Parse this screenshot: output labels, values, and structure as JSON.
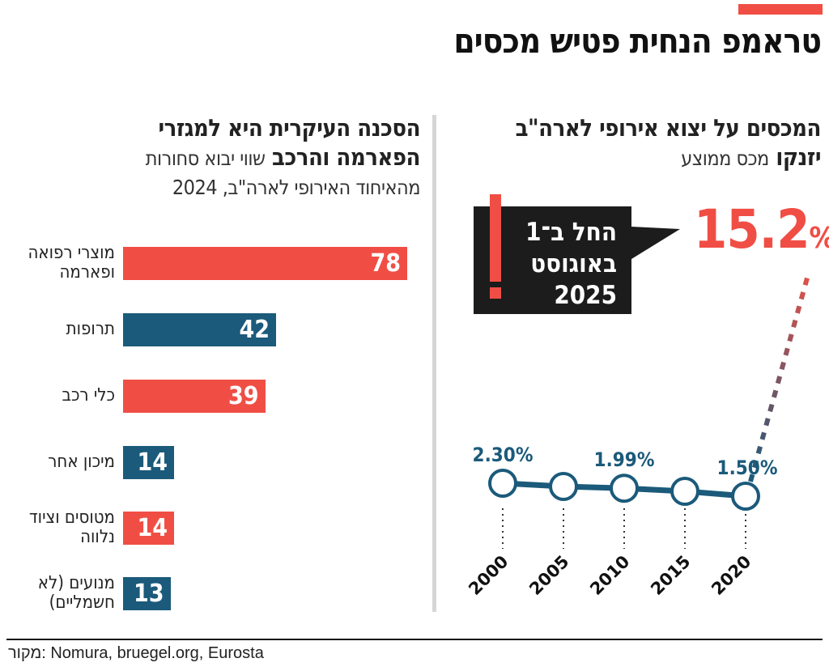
{
  "header": {
    "title": "טראמפ הנחית פטיש מכסים",
    "accent": "#f04e45"
  },
  "left": {
    "title_line1": "הסכנה העיקרית היא למגזרי",
    "title_line2_bold": "הפארמה והרכב",
    "title_line2_rest": "שווי יבוא סחורות",
    "title_line3": "מהאיחוד האירופי לארה\"ב, 2024"
  },
  "right": {
    "title_line1": "המכסים על יצוא אירופי לארה\"ב",
    "title_line2_bold": "יזנקו",
    "title_line2_rest": "מכס ממוצע",
    "callout": {
      "line1": "החל ב־1",
      "line2": "באוגוסט",
      "line3": "2025",
      "icon": "exclamation-icon"
    },
    "big_value": "15.2",
    "big_unit": "%"
  },
  "footer": {
    "source": "מקור: Nomura, bruegel.org, Eurosta"
  },
  "chart_data": [
    {
      "type": "bar",
      "orientation": "horizontal",
      "title": "הסכנה העיקרית היא למגזרי הפארמה והרכב",
      "subtitle": "שווי יבוא סחורות מהאיחוד האירופי לארה\"ב, 2024",
      "categories": [
        "מוצרי רפואה ופארמה",
        "תרופות",
        "כלי רכב",
        "מיכון אחר",
        "מטוסים וציוד נלווה",
        "מנועים (לא חשמליים)"
      ],
      "values": [
        78,
        42,
        39,
        14,
        14,
        13
      ],
      "labels": [
        "78",
        "42",
        "39",
        "14",
        "14",
        "13"
      ],
      "colors": [
        "#f04e45",
        "#1b5a7a",
        "#f04e45",
        "#1b5a7a",
        "#f04e45",
        "#1b5a7a"
      ],
      "grid": false
    },
    {
      "type": "line",
      "title": "המכסים על יצוא אירופי לארה\"ב יזנקו",
      "subtitle": "מכס ממוצע",
      "x": [
        "2000",
        "2005",
        "2010",
        "2015",
        "2020"
      ],
      "values": [
        2.3,
        2.1,
        1.99,
        1.8,
        1.5
      ],
      "data_labels": {
        "0": "2.30%",
        "2": "1.99%",
        "4": "1.50%"
      },
      "projection": {
        "value": 15.2,
        "label": "15.2%",
        "note": "החל ב־1 באוגוסט 2025"
      },
      "color": "#1b5a7a",
      "projection_color": "#f04e45",
      "grid": false
    }
  ]
}
